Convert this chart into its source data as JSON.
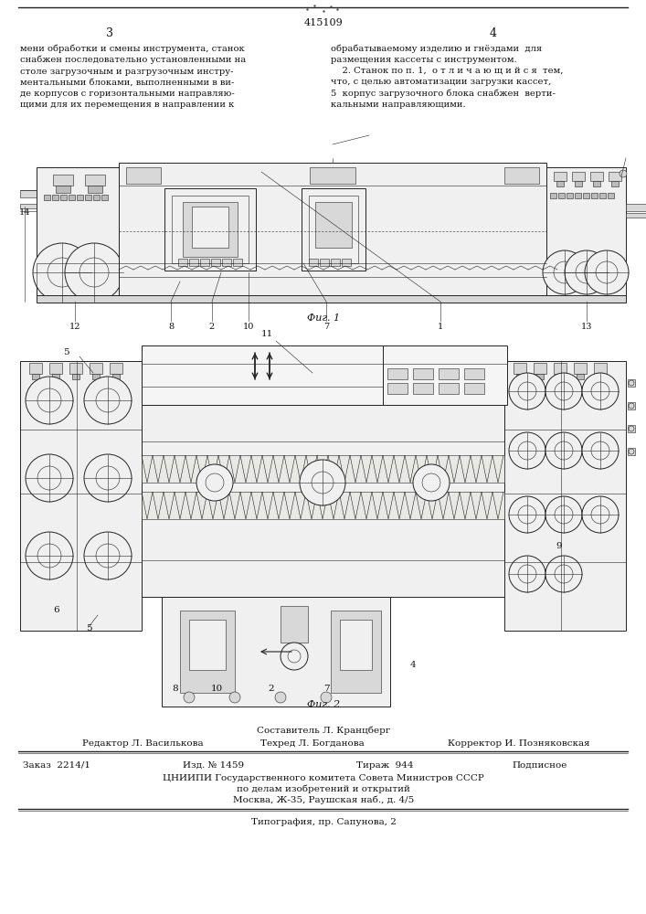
{
  "background_color": "#ffffff",
  "page_color": "#ffffff",
  "patent_number": "415109",
  "page_numbers": [
    "3",
    "4"
  ],
  "text_col1": "мени обработки и смены инструмента, станок\nснабжен последовательно установленными на\nстоле загрузочным и разгрузочным инстру-\nментальными блоками, выполненными в ви-\nде корпусов с горизонтальными направляю-\nщими для их перемещения в направлении к",
  "text_col2": "обрабатываемому изделию и гнёздами  для\nразмещения кассеты с инструментом.\n    2. Станок по п. 1,  о т л и ч а ю щ и й с я  тем,\nчто, с целью автоматизации загрузки кассет,\n5  корпус загрузочного блока снабжен  верти-\nкальными направляющими.",
  "fig1_label": "Фиг. 1",
  "fig2_label": "Фиг. 2",
  "footer_compiler": "Составитель Л. Кранцберг",
  "footer_editor": "Редактор Л. Василькова",
  "footer_techred": "Техред Л. Богданова",
  "footer_corrector": "Корректор И. Позняковская",
  "footer_order": "Заказ  2214/1",
  "footer_izd": "Изд. № 1459",
  "footer_tirazh": "Тираж  944",
  "footer_podpisnoe": "Подписное",
  "footer_org": "ЦНИИПИ Государственного комитета Совета Министров СССР",
  "footer_org2": "по делам изобретений и открытий",
  "footer_addr": "Москва, Ж-35, Раушская наб., д. 4/5",
  "footer_typography": "Типография, пр. Сапунова, 2",
  "lw_thin": 0.4,
  "lw_med": 0.7,
  "lw_thick": 1.0,
  "draw_color": "#222222",
  "fill_light": "#f0f0f0",
  "fill_mid": "#d8d8d8",
  "fill_dark": "#bbbbbb"
}
